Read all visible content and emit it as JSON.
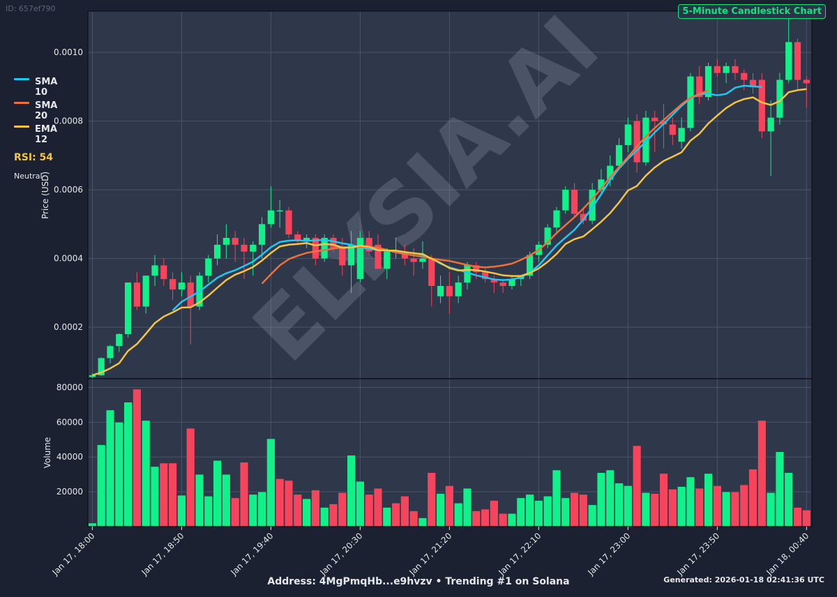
{
  "header": {
    "id_label": "ID: 657ef790",
    "title": "5-Minute Candlestick Chart",
    "watermark": "ELYSIA.AI"
  },
  "legend": {
    "items": [
      {
        "label": "SMA 10",
        "color": "#1fc8f5"
      },
      {
        "label": "SMA 20",
        "color": "#f0703a"
      },
      {
        "label": "EMA 12",
        "color": "#f4c542"
      }
    ]
  },
  "rsi": {
    "label": "RSI: 54",
    "status": "Neutral"
  },
  "footer": {
    "address": "Address: 4MgPmqHb...e9hvzv • Trending #1 on Solana",
    "generated": "Generated: 2026-01-18 02:41:36 UTC"
  },
  "colors": {
    "up": "#12f08a",
    "down": "#f5455c",
    "panel_bg": "#2f374a",
    "grid": "#4c5568"
  },
  "chart_data": [
    {
      "type": "candlestick",
      "interval": "5-Minute",
      "ylabel": "Price (USD)",
      "ylim": [
        5e-05,
        0.00112
      ],
      "yticks": [
        0.0002,
        0.0004,
        0.0006,
        0.0008,
        0.001
      ],
      "ytick_labels": [
        "0.0002",
        "0.0004",
        "0.0006",
        "0.0008",
        "0.0010"
      ],
      "xtick_labels": [
        "Jan 17, 18:00",
        "Jan 17, 18:50",
        "Jan 17, 19:40",
        "Jan 17, 20:30",
        "Jan 17, 21:20",
        "Jan 17, 22:10",
        "Jan 17, 23:00",
        "Jan 17, 23:50",
        "Jan 18, 00:40"
      ],
      "xtick_index": [
        0,
        10,
        20,
        30,
        40,
        50,
        60,
        70,
        80
      ],
      "grid": true,
      "legend_position": "left",
      "ohlc": [
        [
          5.5e-05,
          6.5e-05,
          5.2e-05,
          6e-05
        ],
        [
          6e-05,
          0.000112,
          5.8e-05,
          0.00011
        ],
        [
          0.00011,
          0.000148,
          9.5e-05,
          0.000145
        ],
        [
          0.000145,
          0.000182,
          0.000128,
          0.00018
        ],
        [
          0.00018,
          0.00033,
          0.00017,
          0.00033
        ],
        [
          0.00033,
          0.00036,
          0.00025,
          0.00026
        ],
        [
          0.00026,
          0.00035,
          0.00024,
          0.00035
        ],
        [
          0.00035,
          0.00041,
          0.00032,
          0.00038
        ],
        [
          0.00038,
          0.0004,
          0.00032,
          0.00034
        ],
        [
          0.00034,
          0.00036,
          0.00028,
          0.00031
        ],
        [
          0.00031,
          0.00036,
          0.00029,
          0.00033
        ],
        [
          0.00033,
          0.00035,
          0.00015,
          0.00026
        ],
        [
          0.00026,
          0.00036,
          0.00025,
          0.00035
        ],
        [
          0.00035,
          0.00041,
          0.00033,
          0.0004
        ],
        [
          0.0004,
          0.00047,
          0.00038,
          0.00044
        ],
        [
          0.00044,
          0.0005,
          0.0004,
          0.00046
        ],
        [
          0.00046,
          0.00048,
          0.00039,
          0.00044
        ],
        [
          0.00044,
          0.00046,
          0.00034,
          0.00042
        ],
        [
          0.00042,
          0.00045,
          0.00035,
          0.00044
        ],
        [
          0.00044,
          0.00052,
          0.0004,
          0.0005
        ],
        [
          0.0005,
          0.00061,
          0.00049,
          0.00054
        ],
        [
          0.00054,
          0.00057,
          0.00049,
          0.00054
        ],
        [
          0.00054,
          0.00055,
          0.00046,
          0.00047
        ],
        [
          0.00047,
          0.00048,
          0.00044,
          0.00045
        ],
        [
          0.00045,
          0.00047,
          0.00043,
          0.00046
        ],
        [
          0.00046,
          0.00047,
          0.00038,
          0.0004
        ],
        [
          0.0004,
          0.00047,
          0.00039,
          0.00046
        ],
        [
          0.00046,
          0.00047,
          0.00042,
          0.00043
        ],
        [
          0.00043,
          0.00046,
          0.00035,
          0.00038
        ],
        [
          0.00038,
          0.00048,
          0.0003,
          0.00044
        ],
        [
          0.00034,
          0.00048,
          0.00033,
          0.00046
        ],
        [
          0.00046,
          0.00048,
          0.00041,
          0.00042
        ],
        [
          0.00044,
          0.00047,
          0.00038,
          0.00037
        ],
        [
          0.00037,
          0.00043,
          0.00034,
          0.00042
        ],
        [
          0.00042,
          0.00046,
          0.0004,
          0.00042
        ],
        [
          0.00042,
          0.00044,
          0.00038,
          0.0004
        ],
        [
          0.0004,
          0.00043,
          0.00035,
          0.00039
        ],
        [
          0.00039,
          0.00045,
          0.00037,
          0.0004
        ],
        [
          0.0004,
          0.00041,
          0.00026,
          0.00032
        ],
        [
          0.00029,
          0.00035,
          0.00027,
          0.00032
        ],
        [
          0.00032,
          0.00036,
          0.00024,
          0.00029
        ],
        [
          0.00029,
          0.00035,
          0.00027,
          0.00033
        ],
        [
          0.00033,
          0.00039,
          0.00031,
          0.00038
        ],
        [
          0.00038,
          0.00039,
          0.00034,
          0.00036
        ],
        [
          0.00036,
          0.00037,
          0.00033,
          0.00034
        ],
        [
          0.00034,
          0.00035,
          0.0003,
          0.00033
        ],
        [
          0.00033,
          0.00034,
          0.0003,
          0.00032
        ],
        [
          0.00032,
          0.00035,
          0.00031,
          0.00034
        ],
        [
          0.00034,
          0.00035,
          0.00032,
          0.00035
        ],
        [
          0.00035,
          0.00042,
          0.00034,
          0.00041
        ],
        [
          0.00041,
          0.00045,
          0.00039,
          0.00044
        ],
        [
          0.00044,
          0.0005,
          0.00043,
          0.00049
        ],
        [
          0.00049,
          0.00055,
          0.00047,
          0.00054
        ],
        [
          0.00054,
          0.00061,
          0.00053,
          0.0006
        ],
        [
          0.0006,
          0.00062,
          0.00052,
          0.00053
        ],
        [
          0.00053,
          0.00055,
          0.0005,
          0.00051
        ],
        [
          0.00051,
          0.00062,
          0.0005,
          0.0006
        ],
        [
          0.0006,
          0.00066,
          0.00059,
          0.00063
        ],
        [
          0.00063,
          0.0007,
          0.00061,
          0.00067
        ],
        [
          0.00067,
          0.00075,
          0.00066,
          0.00073
        ],
        [
          0.00073,
          0.00081,
          0.00071,
          0.00079
        ],
        [
          0.0008,
          0.00082,
          0.00065,
          0.00068
        ],
        [
          0.00068,
          0.00083,
          0.00067,
          0.00081
        ],
        [
          0.00081,
          0.00083,
          0.00071,
          0.0008
        ],
        [
          0.0008,
          0.00085,
          0.00072,
          0.00079
        ],
        [
          0.00079,
          0.00081,
          0.00073,
          0.00076
        ],
        [
          0.00074,
          0.00081,
          0.00072,
          0.00078
        ],
        [
          0.00078,
          0.00094,
          0.00077,
          0.00093
        ],
        [
          0.00093,
          0.00096,
          0.00085,
          0.00087
        ],
        [
          0.00087,
          0.00097,
          0.00086,
          0.00096
        ],
        [
          0.00096,
          0.00098,
          0.00093,
          0.00094
        ],
        [
          0.00094,
          0.00097,
          0.00091,
          0.00096
        ],
        [
          0.00096,
          0.00098,
          0.00092,
          0.00094
        ],
        [
          0.00094,
          0.00095,
          0.00089,
          0.00092
        ],
        [
          0.00092,
          0.00094,
          0.00088,
          0.0009
        ],
        [
          0.00092,
          0.00094,
          0.00075,
          0.00077
        ],
        [
          0.00077,
          0.00086,
          0.00064,
          0.00081
        ],
        [
          0.00081,
          0.00094,
          0.00079,
          0.00092
        ],
        [
          0.00092,
          0.00111,
          0.00091,
          0.00103
        ],
        [
          0.00103,
          0.00104,
          0.00089,
          0.00092
        ],
        [
          0.00092,
          0.00093,
          0.00084,
          0.00091
        ]
      ],
      "indicators": [
        {
          "name": "SMA 10",
          "color": "#1fc8f5",
          "start": 9,
          "values": [
            0.000249,
            0.000274,
            0.000289,
            0.000304,
            0.000324,
            0.000344,
            0.000357,
            0.000366,
            0.000378,
            0.000391,
            0.000411,
            0.000433,
            0.000448,
            0.000452,
            0.000453,
            0.000451,
            0.000453,
            0.000454,
            0.00045,
            0.000444,
            0.00044,
            0.000432,
            0.000428,
            0.000425,
            0.000423,
            0.00042,
            0.000418,
            0.000416,
            0.00041,
            0.0004,
            0.000385,
            0.000374,
            0.000367,
            0.000359,
            0.000351,
            0.000345,
            0.000339,
            0.000337,
            0.000339,
            0.000345,
            0.000359,
            0.00038,
            0.000409,
            0.000438,
            0.000461,
            0.000483,
            0.000513,
            0.000548,
            0.000587,
            0.000628,
            0.000662,
            0.00069,
            0.000715,
            0.00074,
            0.000767,
            0.000792,
            0.000818,
            0.000844,
            0.000866,
            0.000878,
            0.00088,
            0.000875,
            0.000879,
            0.000897,
            0.000903,
            0.000901,
            0.000899
          ]
        },
        {
          "name": "SMA 20",
          "color": "#f0703a",
          "start": 19,
          "values": [
            0.000327,
            0.000354,
            0.00038,
            0.000398,
            0.000408,
            0.000416,
            0.000421,
            0.000424,
            0.000429,
            0.000432,
            0.000433,
            0.000434,
            0.000434,
            0.000431,
            0.000425,
            0.000418,
            0.000413,
            0.000409,
            0.000405,
            0.0004,
            0.000396,
            0.000393,
            0.000387,
            0.000381,
            0.000376,
            0.000374,
            0.000376,
            0.00038,
            0.000385,
            0.000396,
            0.000409,
            0.000425,
            0.000447,
            0.000474,
            0.000497,
            0.00052,
            0.000545,
            0.000573,
            0.000603,
            0.000637,
            0.000666,
            0.000695,
            0.000726,
            0.000755,
            0.00078,
            0.000803,
            0.000826,
            0.000849,
            0.000868,
            0.000879,
            0.000889
          ]
        },
        {
          "name": "EMA 12",
          "color": "#f4c542",
          "start": 0,
          "values": [
            6e-05,
            6.8e-05,
            8e-05,
            9.5e-05,
            0.000131,
            0.000151,
            0.000181,
            0.000212,
            0.000231,
            0.000243,
            0.000257,
            0.000258,
            0.000272,
            0.000292,
            0.000315,
            0.000337,
            0.000353,
            0.000363,
            0.000375,
            0.000394,
            0.000416,
            0.000435,
            0.00044,
            0.000442,
            0.000445,
            0.000438,
            0.000442,
            0.00044,
            0.000431,
            0.000432,
            0.000437,
            0.000434,
            0.000424,
            0.000423,
            0.000423,
            0.000419,
            0.000415,
            0.000413,
            0.000399,
            0.000387,
            0.000372,
            0.000365,
            0.000367,
            0.000366,
            0.000362,
            0.000357,
            0.000351,
            0.000349,
            0.000349,
            0.000358,
            0.000371,
            0.00039,
            0.000413,
            0.000442,
            0.000456,
            0.000464,
            0.000485,
            0.000507,
            0.000532,
            0.000563,
            0.000598,
            0.000611,
            0.000641,
            0.000665,
            0.000684,
            0.000696,
            0.000709,
            0.000743,
            0.000763,
            0.000793,
            0.000816,
            0.000838,
            0.000854,
            0.000864,
            0.000869,
            0.000854,
            0.000847,
            0.000858,
            0.000884,
            0.00089,
            0.000893
          ]
        }
      ]
    },
    {
      "type": "bar",
      "ylabel": "Volume",
      "ylim": [
        0,
        85000
      ],
      "yticks": [
        20000,
        40000,
        60000,
        80000
      ],
      "ytick_labels": [
        "20000",
        "40000",
        "60000",
        "80000"
      ],
      "values": [
        2000,
        47000,
        67000,
        60000,
        71500,
        79000,
        61000,
        34500,
        36500,
        36500,
        18000,
        56500,
        30000,
        17500,
        38000,
        30000,
        16500,
        37000,
        18500,
        20000,
        50500,
        27500,
        26500,
        18500,
        16000,
        21000,
        11000,
        13000,
        19500,
        41000,
        26000,
        18500,
        22000,
        11000,
        13500,
        17500,
        9000,
        5000,
        31000,
        19000,
        23500,
        13500,
        22000,
        9000,
        10000,
        15000,
        7500,
        7500,
        16500,
        18500,
        15000,
        17500,
        32500,
        16500,
        19500,
        18500,
        12500,
        31000,
        32500,
        25000,
        23500,
        46500,
        19500,
        19000,
        30500,
        21500,
        23000,
        28500,
        22000,
        30500,
        23500,
        20000,
        20000,
        24000,
        33000,
        61000,
        19500,
        43000,
        31000,
        11000,
        9500
      ],
      "directions": [
        "up",
        "up",
        "up",
        "up",
        "up",
        "down",
        "up",
        "up",
        "down",
        "down",
        "up",
        "down",
        "up",
        "up",
        "up",
        "up",
        "down",
        "down",
        "up",
        "up",
        "up",
        "down",
        "down",
        "down",
        "up",
        "down",
        "up",
        "down",
        "down",
        "up",
        "up",
        "down",
        "down",
        "up",
        "down",
        "down",
        "down",
        "up",
        "down",
        "up",
        "down",
        "up",
        "up",
        "down",
        "down",
        "down",
        "down",
        "up",
        "up",
        "up",
        "up",
        "up",
        "up",
        "up",
        "down",
        "down",
        "up",
        "up",
        "up",
        "up",
        "up",
        "down",
        "up",
        "down",
        "down",
        "down",
        "up",
        "up",
        "down",
        "up",
        "down",
        "up",
        "down",
        "down",
        "down",
        "down",
        "up",
        "up",
        "up",
        "down",
        "down"
      ]
    }
  ]
}
